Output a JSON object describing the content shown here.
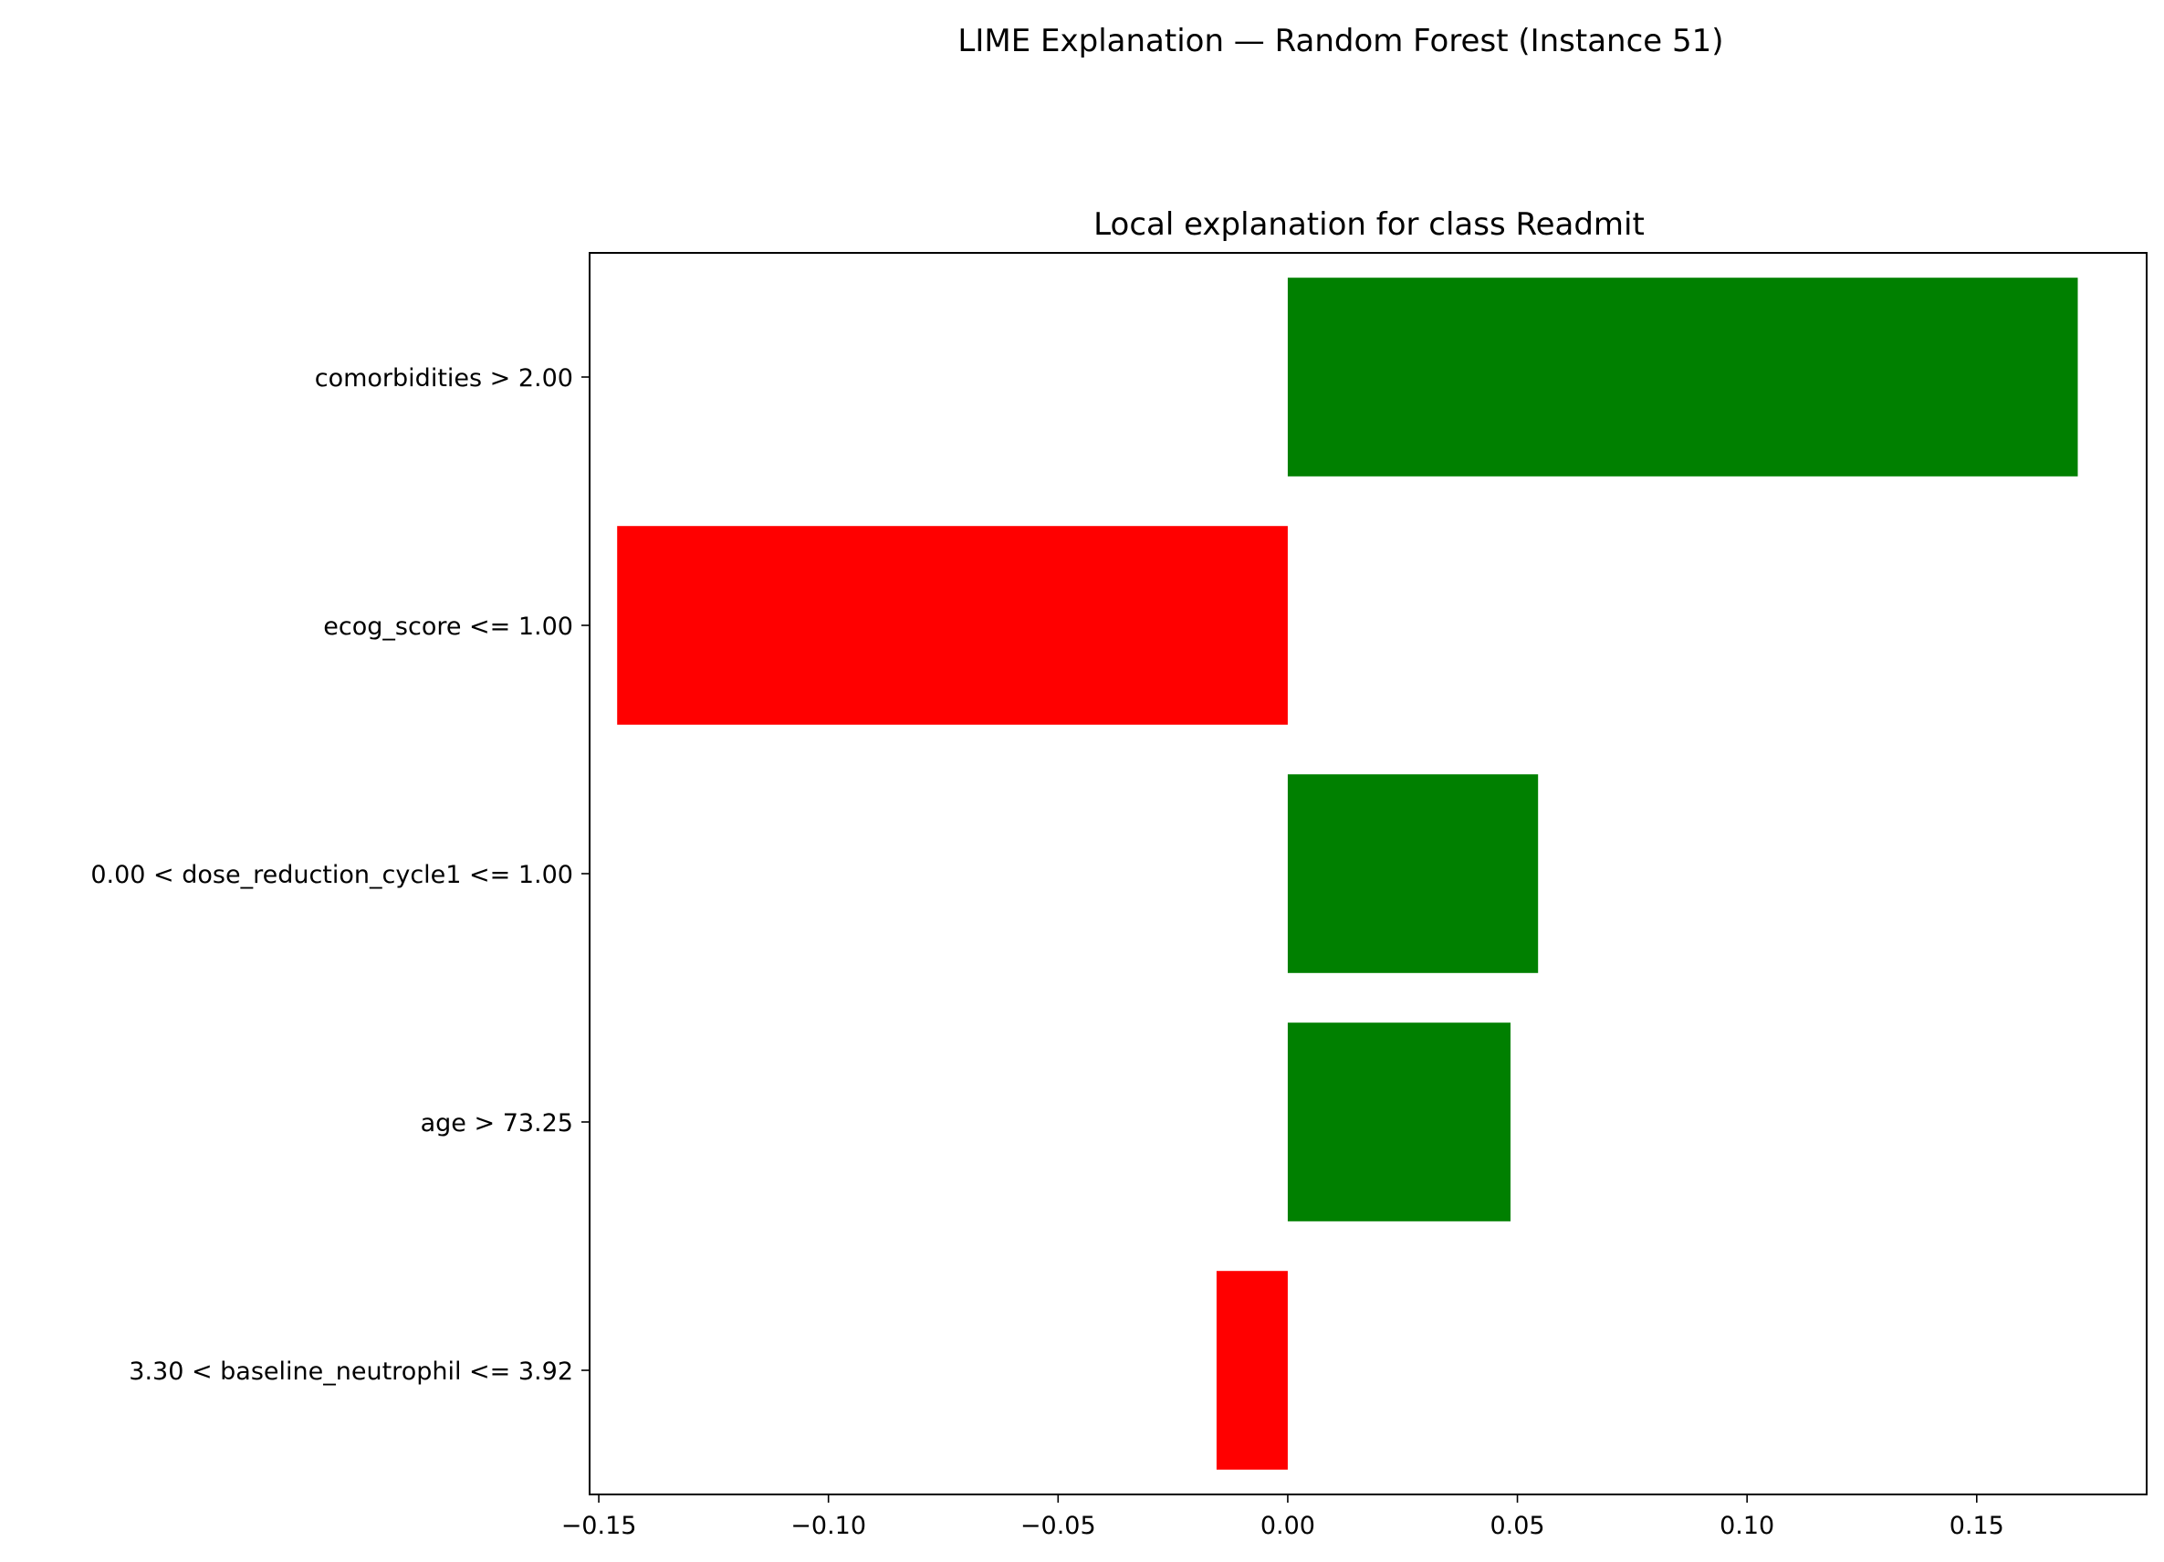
{
  "figure": {
    "suptitle": "LIME Explanation — Random Forest (Instance 51)"
  },
  "colors": {
    "positive": "#008000",
    "negative": "#ff0000",
    "frame": "#000000",
    "background": "#ffffff"
  },
  "chart_data": {
    "type": "bar",
    "orientation": "horizontal",
    "title": "Local explanation for class Readmit",
    "xlabel": "",
    "ylabel": "",
    "xlim": [
      -0.152,
      0.187
    ],
    "xticks": [
      -0.15,
      -0.1,
      -0.05,
      0.0,
      0.05,
      0.1,
      0.15
    ],
    "xtick_labels": [
      "−0.15",
      "−0.10",
      "−0.05",
      "0.00",
      "0.05",
      "0.10",
      "0.15"
    ],
    "grid": false,
    "legend": "none",
    "categories": [
      "comorbidities > 2.00",
      "ecog_score <= 1.00",
      "0.00 < dose_reduction_cycle1 <= 1.00",
      "age > 73.25",
      "3.30 < baseline_neutrophil <= 3.92"
    ],
    "values": [
      0.172,
      -0.146,
      0.0545,
      0.0485,
      -0.0155
    ]
  }
}
